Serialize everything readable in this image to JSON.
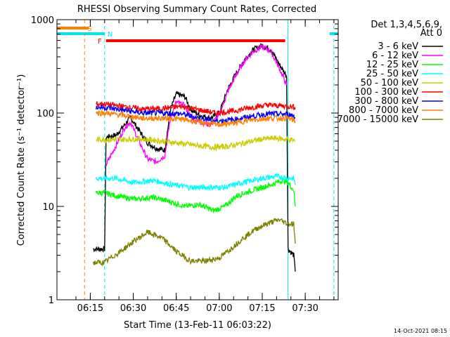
{
  "chart_data": {
    "type": "line",
    "title": "RHESSI Observing Summary Count Rates, Corrected",
    "xlabel": "Start Time (13-Feb-11 06:03:22)",
    "ylabel": "Corrected Count Rate (s⁻¹ detector⁻¹)",
    "yscale": "log",
    "ylim": [
      1,
      1000
    ],
    "xlim": [
      "06:03:22",
      "07:41:30"
    ],
    "x_ticks": [
      "06:15",
      "06:30",
      "06:45",
      "07:00",
      "07:15",
      "07:30"
    ],
    "y_ticks": [
      "1",
      "10",
      "100",
      "1000"
    ],
    "grid": false,
    "timestamp": "14-Oct-2021 08:15",
    "legend_header": [
      "Det 1,3,4,5,6,9,",
      "Att 0"
    ],
    "legend_placement": "right",
    "flags": [
      {
        "label": "S",
        "color": "#ff7f00",
        "segments": [
          [
            "06:03:22",
            "06:14:30"
          ]
        ],
        "marker_time": "06:13:00"
      },
      {
        "label": "N",
        "color": "#00e5ee",
        "segments": [
          [
            "06:03:22",
            "06:20:00"
          ],
          [
            "07:38:30",
            "07:41:30"
          ]
        ],
        "marker_time": "06:20:00"
      },
      {
        "label": "F",
        "color": "#ff0000",
        "segments": [
          [
            "06:20:30",
            "07:23:00"
          ]
        ]
      }
    ],
    "vlines": [
      {
        "time": "06:13:00",
        "color": "#ff7f00",
        "style": "dashed"
      },
      {
        "time": "06:20:00",
        "color": "#00e5ee",
        "style": "dashed"
      },
      {
        "time": "07:24:00",
        "color": "#00e5ee",
        "style": "solid"
      },
      {
        "time": "07:40:00",
        "color": "#00e5ee",
        "style": "dashed"
      }
    ],
    "series": [
      {
        "name": "3 - 6 keV",
        "color": "#000000",
        "points": [
          [
            "06:16:00",
            3.5
          ],
          [
            "06:20:00",
            3.5
          ],
          [
            "06:20:30",
            55
          ],
          [
            "06:24:00",
            58
          ],
          [
            "06:27:00",
            75
          ],
          [
            "06:29:00",
            90
          ],
          [
            "06:32:00",
            65
          ],
          [
            "06:35:00",
            48
          ],
          [
            "06:38:00",
            42
          ],
          [
            "06:41:00",
            40
          ],
          [
            "06:43:00",
            110
          ],
          [
            "06:45:00",
            160
          ],
          [
            "06:48:00",
            150
          ],
          [
            "06:50:00",
            110
          ],
          [
            "06:53:00",
            95
          ],
          [
            "06:57:00",
            88
          ],
          [
            "07:00:00",
            100
          ],
          [
            "07:03:00",
            180
          ],
          [
            "07:06:00",
            270
          ],
          [
            "07:09:00",
            380
          ],
          [
            "07:12:00",
            480
          ],
          [
            "07:15:00",
            530
          ],
          [
            "07:18:00",
            480
          ],
          [
            "07:21:00",
            330
          ],
          [
            "07:23:30",
            250
          ],
          [
            "07:24:00",
            3.5
          ],
          [
            "07:26:00",
            3
          ],
          [
            "07:26:30",
            2
          ]
        ]
      },
      {
        "name": "6 - 12 keV",
        "color": "#ff00ff",
        "points": [
          [
            "06:20:30",
            28
          ],
          [
            "06:24:00",
            45
          ],
          [
            "06:27:00",
            70
          ],
          [
            "06:29:00",
            80
          ],
          [
            "06:32:00",
            50
          ],
          [
            "06:35:00",
            32
          ],
          [
            "06:38:00",
            30
          ],
          [
            "06:41:00",
            35
          ],
          [
            "06:43:00",
            90
          ],
          [
            "06:45:00",
            130
          ],
          [
            "06:48:00",
            120
          ],
          [
            "06:50:00",
            90
          ],
          [
            "06:53:00",
            80
          ],
          [
            "06:57:00",
            75
          ],
          [
            "07:00:00",
            95
          ],
          [
            "07:03:00",
            170
          ],
          [
            "07:06:00",
            260
          ],
          [
            "07:09:00",
            370
          ],
          [
            "07:12:00",
            460
          ],
          [
            "07:15:00",
            510
          ],
          [
            "07:18:00",
            460
          ],
          [
            "07:21:00",
            300
          ],
          [
            "07:23:30",
            200
          ]
        ]
      },
      {
        "name": "12 - 25 keV",
        "color": "#00ff00",
        "points": [
          [
            "06:17:00",
            14
          ],
          [
            "06:20:00",
            14
          ],
          [
            "06:24:00",
            13
          ],
          [
            "06:30:00",
            12
          ],
          [
            "06:37:00",
            12.5
          ],
          [
            "06:44:00",
            11
          ],
          [
            "06:48:00",
            10
          ],
          [
            "06:53:00",
            10.5
          ],
          [
            "06:58:00",
            9
          ],
          [
            "07:02:00",
            10
          ],
          [
            "07:06:00",
            13
          ],
          [
            "07:12:00",
            15
          ],
          [
            "07:18:00",
            17
          ],
          [
            "07:22:00",
            19
          ],
          [
            "07:24:00",
            18
          ],
          [
            "07:26:00",
            15
          ],
          [
            "07:26:30",
            10
          ]
        ]
      },
      {
        "name": "25 - 50 keV",
        "color": "#00ffff",
        "points": [
          [
            "06:17:00",
            20
          ],
          [
            "06:20:00",
            20
          ],
          [
            "06:24:00",
            20
          ],
          [
            "06:30:00",
            18
          ],
          [
            "06:37:00",
            19
          ],
          [
            "06:44:00",
            17
          ],
          [
            "06:50:00",
            16
          ],
          [
            "06:56:00",
            16
          ],
          [
            "07:02:00",
            16
          ],
          [
            "07:08:00",
            18
          ],
          [
            "07:15:00",
            20
          ],
          [
            "07:20:00",
            21
          ],
          [
            "07:24:00",
            20
          ],
          [
            "07:26:00",
            20
          ],
          [
            "07:26:30",
            17
          ]
        ]
      },
      {
        "name": "50 - 100 keV",
        "color": "#cccc00",
        "points": [
          [
            "06:17:00",
            52
          ],
          [
            "06:20:00",
            52
          ],
          [
            "06:26:00",
            52
          ],
          [
            "06:32:00",
            53
          ],
          [
            "06:38:00",
            51
          ],
          [
            "06:45:00",
            48
          ],
          [
            "06:52:00",
            45
          ],
          [
            "06:58:00",
            43
          ],
          [
            "07:03:00",
            44
          ],
          [
            "07:09:00",
            48
          ],
          [
            "07:14:00",
            52
          ],
          [
            "07:19:00",
            54
          ],
          [
            "07:24:00",
            52
          ],
          [
            "07:26:00",
            51
          ],
          [
            "07:26:30",
            50
          ]
        ]
      },
      {
        "name": "100 - 300 keV",
        "color": "#ff0000",
        "points": [
          [
            "06:17:00",
            125
          ],
          [
            "06:20:00",
            125
          ],
          [
            "06:26:00",
            118
          ],
          [
            "06:33:00",
            110
          ],
          [
            "06:40:00",
            112
          ],
          [
            "06:47:00",
            118
          ],
          [
            "06:53:00",
            108
          ],
          [
            "06:59:00",
            100
          ],
          [
            "07:05:00",
            105
          ],
          [
            "07:11:00",
            115
          ],
          [
            "07:17:00",
            122
          ],
          [
            "07:24:00",
            118
          ],
          [
            "07:26:00",
            117
          ],
          [
            "07:26:30",
            115
          ]
        ]
      },
      {
        "name": "300 - 800 keV",
        "color": "#0000ff",
        "points": [
          [
            "06:17:00",
            115
          ],
          [
            "06:20:00",
            115
          ],
          [
            "06:26:00",
            108
          ],
          [
            "06:33:00",
            100
          ],
          [
            "06:40:00",
            100
          ],
          [
            "06:47:00",
            98
          ],
          [
            "06:53:00",
            88
          ],
          [
            "06:59:00",
            82
          ],
          [
            "07:05:00",
            85
          ],
          [
            "07:11:00",
            92
          ],
          [
            "07:17:00",
            98
          ],
          [
            "07:24:00",
            97
          ],
          [
            "07:26:00",
            94
          ],
          [
            "07:26:30",
            90
          ]
        ]
      },
      {
        "name": "800 - 7000 keV",
        "color": "#ff7f00",
        "points": [
          [
            "06:17:00",
            100
          ],
          [
            "06:20:00",
            100
          ],
          [
            "06:26:00",
            95
          ],
          [
            "06:33:00",
            88
          ],
          [
            "06:40:00",
            88
          ],
          [
            "06:47:00",
            86
          ],
          [
            "06:53:00",
            80
          ],
          [
            "06:59:00",
            75
          ],
          [
            "07:05:00",
            78
          ],
          [
            "07:11:00",
            84
          ],
          [
            "07:17:00",
            88
          ],
          [
            "07:24:00",
            88
          ],
          [
            "07:26:00",
            84
          ],
          [
            "07:26:30",
            82
          ]
        ]
      },
      {
        "name": "7000 - 15000 keV",
        "color": "#808000",
        "points": [
          [
            "06:16:00",
            2.5
          ],
          [
            "06:20:00",
            2.5
          ],
          [
            "06:22:00",
            2.8
          ],
          [
            "06:25:00",
            3.2
          ],
          [
            "06:30:00",
            4.2
          ],
          [
            "06:35:00",
            5.3
          ],
          [
            "06:40:00",
            4.6
          ],
          [
            "06:45:00",
            3.3
          ],
          [
            "06:50:00",
            2.6
          ],
          [
            "06:55:00",
            2.6
          ],
          [
            "07:00:00",
            2.8
          ],
          [
            "07:04:00",
            3.5
          ],
          [
            "07:08:00",
            4.5
          ],
          [
            "07:13:00",
            5.8
          ],
          [
            "07:17:00",
            6.6
          ],
          [
            "07:21:00",
            7.2
          ],
          [
            "07:24:00",
            6.5
          ],
          [
            "07:26:00",
            6.5
          ],
          [
            "07:26:30",
            4
          ]
        ]
      }
    ]
  }
}
